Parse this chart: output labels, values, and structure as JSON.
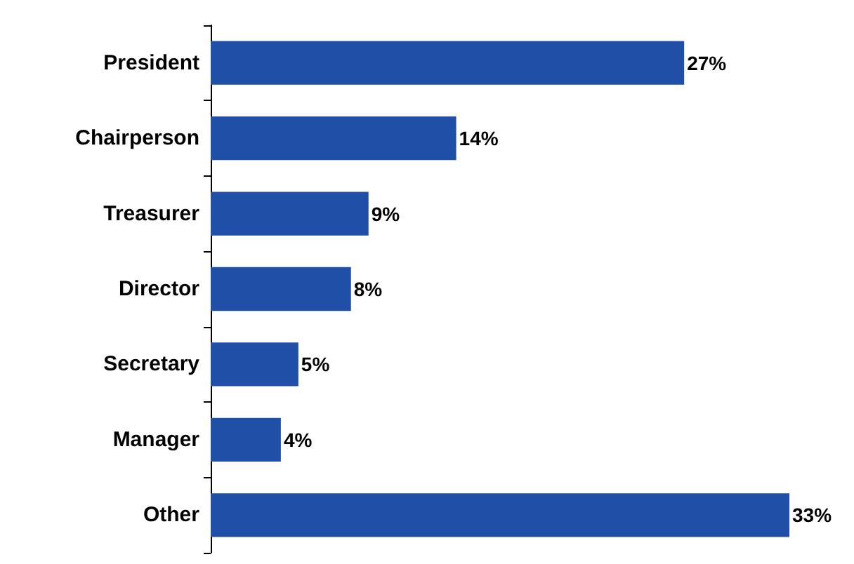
{
  "chart_data": {
    "type": "bar",
    "orientation": "horizontal",
    "categories": [
      "President",
      "Chairperson",
      "Treasurer",
      "Director",
      "Secretary",
      "Manager",
      "Other"
    ],
    "values": [
      27,
      14,
      9,
      8,
      5,
      4,
      33
    ],
    "value_labels": [
      "27%",
      "14%",
      "9%",
      "8%",
      "5%",
      "4%",
      "33%"
    ],
    "color": "#1f4fa6",
    "grid": false
  }
}
